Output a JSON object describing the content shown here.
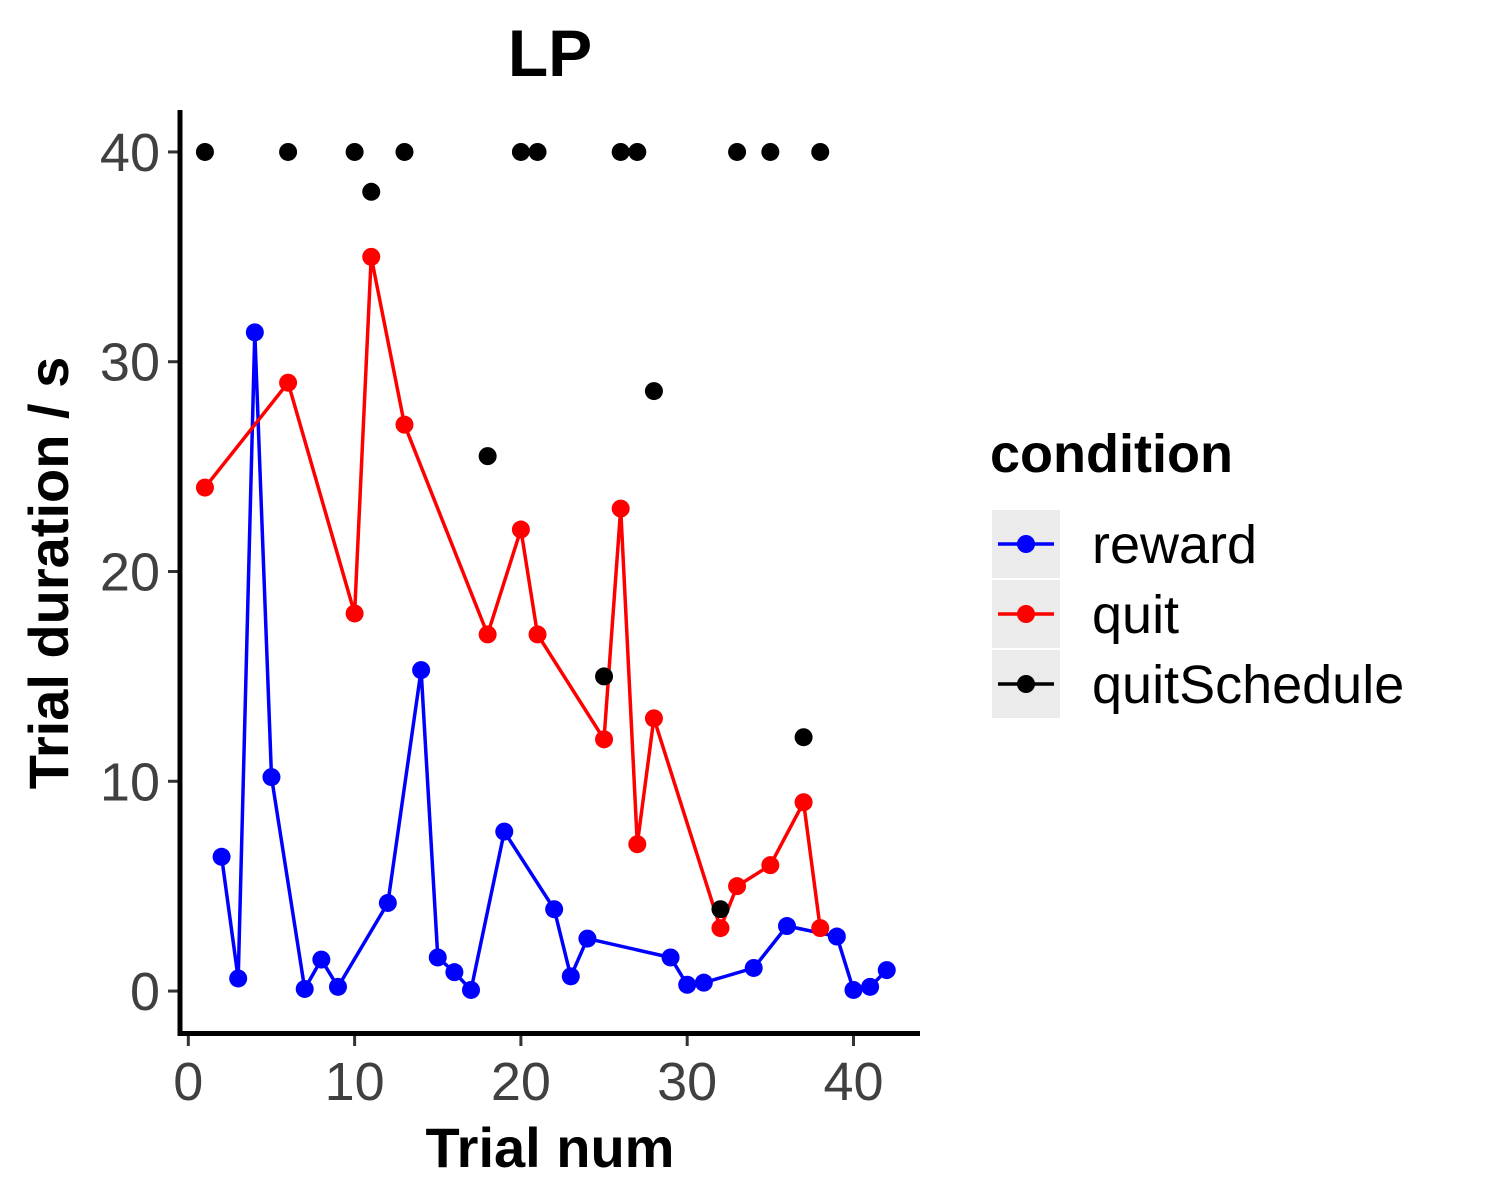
{
  "chart_data": {
    "type": "line",
    "title": "LP",
    "xlabel": "Trial num",
    "ylabel": "Trial duration / s",
    "xlim": [
      -0.5,
      44
    ],
    "ylim": [
      -2,
      42
    ],
    "x_ticks": [
      "0",
      "10",
      "20",
      "30",
      "40"
    ],
    "y_ticks": [
      "0",
      "10",
      "20",
      "30",
      "40"
    ],
    "grid": false,
    "legend": {
      "title": "condition",
      "position": "right",
      "entries": [
        "reward",
        "quit",
        "quitSchedule"
      ]
    },
    "series": [
      {
        "name": "reward",
        "color": "#0000ff",
        "lines": true,
        "points": [
          [
            2,
            6.4
          ],
          [
            3,
            0.6
          ],
          [
            4,
            31.4
          ],
          [
            5,
            10.2
          ],
          [
            7,
            0.1
          ],
          [
            8,
            1.5
          ],
          [
            9,
            0.2
          ],
          [
            12,
            4.2
          ],
          [
            14,
            15.3
          ],
          [
            15,
            1.6
          ],
          [
            16,
            0.9
          ],
          [
            17,
            0.05
          ],
          [
            19,
            7.6
          ],
          [
            22,
            3.9
          ],
          [
            23,
            0.7
          ],
          [
            24,
            2.5
          ],
          [
            29,
            1.6
          ],
          [
            30,
            0.3
          ],
          [
            31,
            0.4
          ],
          [
            34,
            1.1
          ],
          [
            36,
            3.1
          ],
          [
            39,
            2.6
          ],
          [
            40,
            0.05
          ],
          [
            41,
            0.2
          ],
          [
            42,
            1.0
          ]
        ]
      },
      {
        "name": "quit",
        "color": "#ff0000",
        "lines": true,
        "points": [
          [
            1,
            24
          ],
          [
            6,
            29
          ],
          [
            10,
            18
          ],
          [
            11,
            35
          ],
          [
            13,
            27
          ],
          [
            18,
            17
          ],
          [
            20,
            22
          ],
          [
            21,
            17
          ],
          [
            25,
            12
          ],
          [
            26,
            23
          ],
          [
            27,
            7
          ],
          [
            28,
            13
          ],
          [
            32,
            3
          ],
          [
            33,
            5
          ],
          [
            35,
            6
          ],
          [
            37,
            9
          ],
          [
            38,
            3
          ]
        ]
      },
      {
        "name": "quitSchedule",
        "color": "#000000",
        "lines": false,
        "points": [
          [
            1,
            40
          ],
          [
            6,
            40
          ],
          [
            10,
            40
          ],
          [
            11,
            38.1
          ],
          [
            13,
            40
          ],
          [
            18,
            25.5
          ],
          [
            20,
            40
          ],
          [
            21,
            40
          ],
          [
            25,
            15
          ],
          [
            26,
            40
          ],
          [
            27,
            40
          ],
          [
            28,
            28.6
          ],
          [
            32,
            3.9
          ],
          [
            33,
            40
          ],
          [
            35,
            40
          ],
          [
            37,
            12.1
          ],
          [
            38,
            40
          ]
        ]
      }
    ]
  }
}
